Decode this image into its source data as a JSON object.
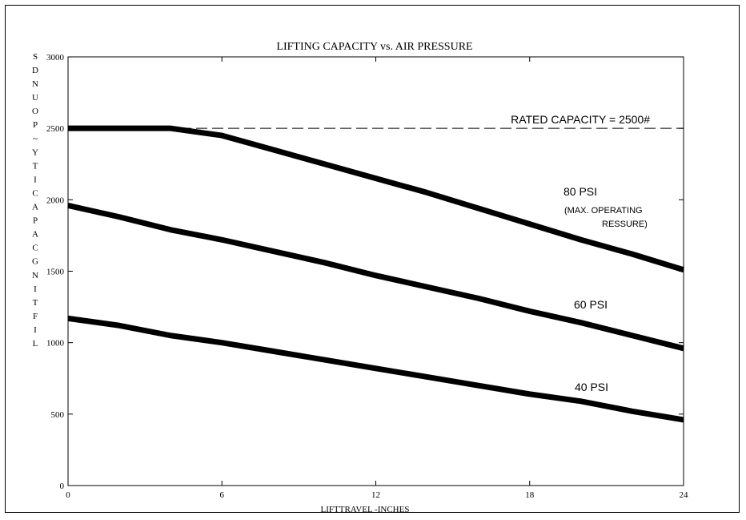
{
  "colors": {
    "background": "#ffffff",
    "ink": "#000000"
  },
  "chart_data": {
    "type": "line",
    "title": "LIFTING CAPACITY vs. AIR PRESSURE",
    "xlabel": "LIFTTRAVEL -INCHES",
    "ylabel": "LIFTING CAPACITY ~ POUNDS",
    "ylabel_letters": [
      "S",
      "D",
      "N",
      "U",
      "O",
      "P",
      "~",
      "Y",
      "T",
      "I",
      "C",
      "A",
      "P",
      "A",
      "C",
      "G",
      "N",
      "I",
      "T",
      "F",
      "I",
      "L"
    ],
    "xlim": [
      0,
      24
    ],
    "ylim": [
      0,
      3000
    ],
    "xticks": [
      0,
      6,
      12,
      18,
      24
    ],
    "yticks": [
      0,
      500,
      1000,
      1500,
      2000,
      2500,
      3000
    ],
    "xtick_labels": [
      "0",
      "6",
      "12",
      "18",
      "24"
    ],
    "ytick_labels": [
      "0",
      "500",
      "1000",
      "1500",
      "2000",
      "2500",
      "3000"
    ],
    "grid": false,
    "series": [
      {
        "name": "80 PSI",
        "x": [
          0,
          2,
          4,
          6,
          8,
          10,
          12,
          14,
          16,
          18,
          20,
          22,
          24
        ],
        "y": [
          2500,
          2500,
          2500,
          2450,
          2350,
          2250,
          2150,
          2050,
          1940,
          1830,
          1720,
          1620,
          1510
        ]
      },
      {
        "name": "60 PSI",
        "x": [
          0,
          2,
          4,
          6,
          8,
          10,
          12,
          14,
          16,
          18,
          20,
          22,
          24
        ],
        "y": [
          1960,
          1880,
          1790,
          1720,
          1640,
          1560,
          1470,
          1390,
          1310,
          1220,
          1140,
          1050,
          960
        ]
      },
      {
        "name": "40 PSI",
        "x": [
          0,
          2,
          4,
          6,
          8,
          10,
          12,
          14,
          16,
          18,
          20,
          22,
          24
        ],
        "y": [
          1170,
          1120,
          1050,
          1000,
          940,
          880,
          820,
          760,
          700,
          640,
          590,
          520,
          460
        ]
      }
    ],
    "reference_line": {
      "label": "RATED CAPACITY = 2500#",
      "y": 2500,
      "style": "dashed"
    },
    "annotations": {
      "psi80": "80 PSI",
      "psi80_note1": "(MAX. OPERATING",
      "psi80_note2": "RESSURE)",
      "psi60": "60 PSI",
      "psi40": "40 PSI"
    }
  }
}
